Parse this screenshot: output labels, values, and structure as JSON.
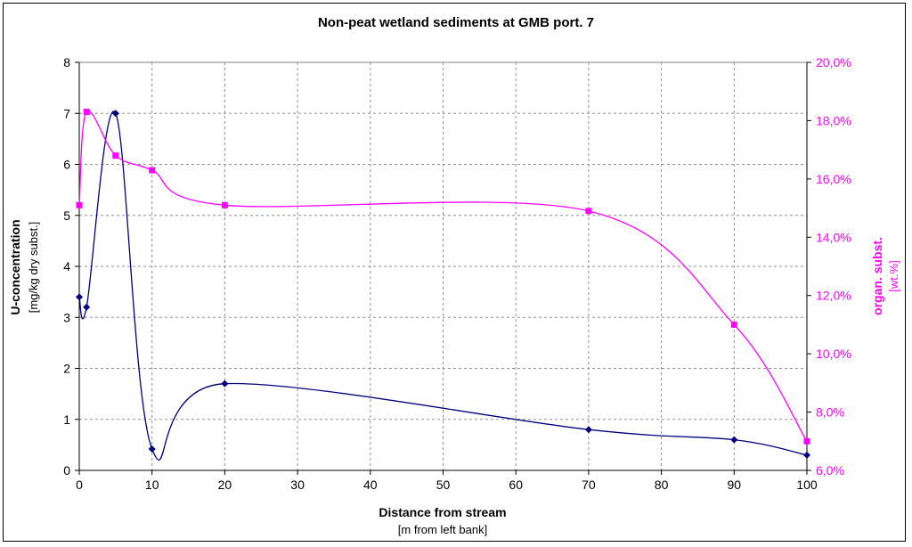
{
  "chart_data": {
    "type": "line",
    "title": "Non-peat wetland sediments at GMB port. 7",
    "xlabel": "Distance from stream",
    "xlabel_sub": "[m from left bank]",
    "ylabel": "U-concentration",
    "ylabel_sub": "[mg/kg dry subst.]",
    "y2label": "organ. subst.",
    "y2label_sub": "[wt.%]",
    "xlim": [
      0,
      100
    ],
    "ylim": [
      0,
      8
    ],
    "y2lim": [
      6,
      20
    ],
    "x_ticks": [
      "0",
      "10",
      "20",
      "30",
      "40",
      "50",
      "60",
      "70",
      "80",
      "90",
      "100"
    ],
    "y_ticks": [
      "0",
      "1",
      "2",
      "3",
      "4",
      "5",
      "6",
      "7",
      "8"
    ],
    "y2_ticks": [
      "6,0%",
      "8,0%",
      "10,0%",
      "12,0%",
      "14,0%",
      "16,0%",
      "18,0%",
      "20,0%"
    ],
    "grid": true,
    "series": [
      {
        "axis": "left",
        "color": "#000080",
        "marker": "diamond",
        "x": [
          0,
          1,
          5,
          10,
          20,
          70,
          90,
          100
        ],
        "values": [
          3.4,
          3.2,
          7.0,
          0.42,
          1.7,
          0.8,
          0.6,
          0.3
        ]
      },
      {
        "axis": "right",
        "color": "#ff00ff",
        "marker": "square",
        "x": [
          0,
          1,
          5,
          10,
          20,
          70,
          90,
          100
        ],
        "values": [
          15.1,
          18.3,
          16.8,
          16.3,
          15.1,
          14.9,
          11.0,
          7.0
        ]
      }
    ]
  }
}
